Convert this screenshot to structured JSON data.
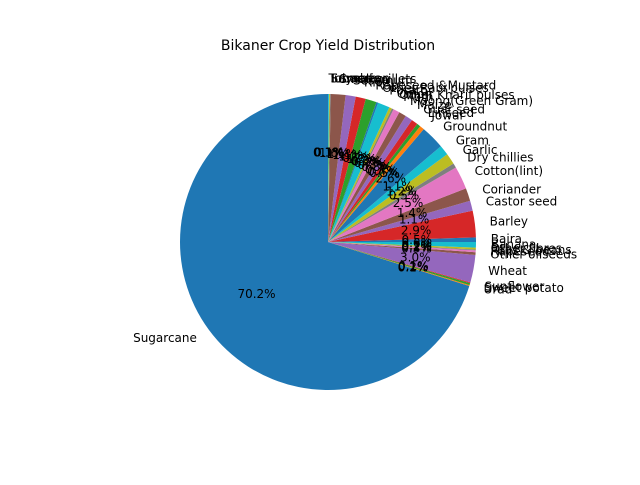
{
  "chart_data": {
    "type": "pie",
    "title": "Bikaner Crop Yield Distribution",
    "label_precision": 1,
    "start_angle_deg": 90,
    "direction": "counterclockwise",
    "slices": [
      {
        "label": "Sugarcane",
        "value": 70.2,
        "color": "#1f77b4"
      },
      {
        "label": "Urad",
        "value": 0.1,
        "color": "#ff7f0e"
      },
      {
        "label": "Sweet potato",
        "value": 0.2,
        "color": "#2ca02c"
      },
      {
        "label": "Sunflower",
        "value": 0.1,
        "color": "#d62728"
      },
      {
        "label": "Wheat",
        "value": 3.0,
        "color": "#9467bd"
      },
      {
        "label": "Other oilseeds",
        "value": 0.3,
        "color": "#8c564b"
      },
      {
        "label": "Rapeseed",
        "value": 0.2,
        "color": "#e377c2"
      },
      {
        "label": "Peas & beans",
        "value": 0.1,
        "color": "#7f7f7f"
      },
      {
        "label": "Other fibres",
        "value": 0.2,
        "color": "#bcbd22"
      },
      {
        "label": "Banana",
        "value": 0.6,
        "color": "#17becf"
      },
      {
        "label": "Bajra",
        "value": 0.5,
        "color": "#1f77b4"
      },
      {
        "label": "Barley",
        "value": 2.9,
        "color": "#d62728"
      },
      {
        "label": "Castor seed",
        "value": 1.1,
        "color": "#9467bd"
      },
      {
        "label": "Coriander",
        "value": 1.4,
        "color": "#8c564b"
      },
      {
        "label": "Cotton(lint)",
        "value": 2.5,
        "color": "#e377c2"
      },
      {
        "label": "Dry chillies",
        "value": 0.5,
        "color": "#7f7f7f"
      },
      {
        "label": "Garlic",
        "value": 1.2,
        "color": "#bcbd22"
      },
      {
        "label": "Gram",
        "value": 1.1,
        "color": "#17becf"
      },
      {
        "label": "Groundnut",
        "value": 2.6,
        "color": "#1f77b4"
      },
      {
        "label": "Jowar",
        "value": 0.5,
        "color": "#ff7f0e"
      },
      {
        "label": "Linseed",
        "value": 0.4,
        "color": "#2ca02c"
      },
      {
        "label": "Guar seed",
        "value": 0.7,
        "color": "#d62728"
      },
      {
        "label": "Maize",
        "value": 0.8,
        "color": "#9467bd"
      },
      {
        "label": "Moong(Green Gram)",
        "value": 0.8,
        "color": "#8c564b"
      },
      {
        "label": "Moth",
        "value": 0.7,
        "color": "#e377c2"
      },
      {
        "label": "Other Kharif pulses",
        "value": 0.2,
        "color": "#7f7f7f"
      },
      {
        "label": "Onion",
        "value": 0.3,
        "color": "#bcbd22"
      },
      {
        "label": "Potato",
        "value": 1.3,
        "color": "#17becf"
      },
      {
        "label": "Other Rabi pulses",
        "value": 0.2,
        "color": "#1f77b4"
      },
      {
        "label": "Rapeseed &Mustard",
        "value": 1.2,
        "color": "#2ca02c"
      },
      {
        "label": "Rice",
        "value": 1.1,
        "color": "#d62728"
      },
      {
        "label": "Sesamum",
        "value": 1.1,
        "color": "#9467bd"
      },
      {
        "label": "Small millets",
        "value": 1.6,
        "color": "#8c564b"
      },
      {
        "label": "Soyabean",
        "value": 0.1,
        "color": "#7f7f7f"
      },
      {
        "label": "Tobacco",
        "value": 0.1,
        "color": "#bcbd22"
      },
      {
        "label": "Turmeric",
        "value": 0.1,
        "color": "#17becf"
      }
    ]
  }
}
